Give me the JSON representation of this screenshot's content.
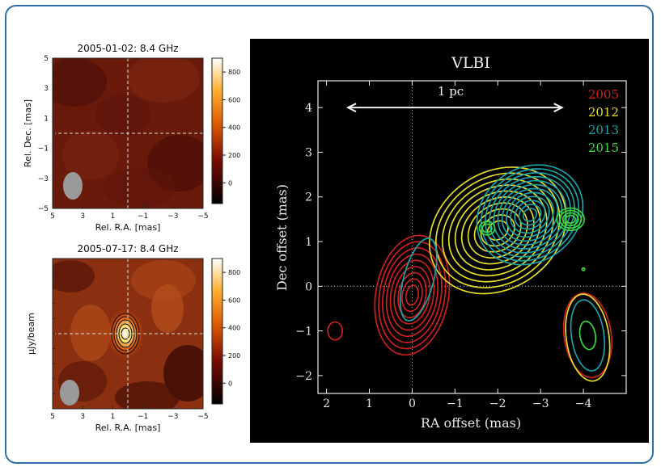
{
  "colors": {
    "frame_border": "#2e6fa7",
    "vlbi_background": "#000000",
    "y2005": "#cc1f1f",
    "y2012": "#e4dc2a",
    "y2013": "#1aa0a8",
    "y2015": "#38d83a",
    "beam": "#9a9a9a"
  },
  "chart_data": [
    {
      "type": "heatmap",
      "title": "2005-01-02:  8.4 GHz",
      "xlabel": "Rel. R.A. [mas]",
      "ylabel": "Rel. Dec. [mas]",
      "x_ticks": [
        "5",
        "3",
        "1",
        "−1",
        "−3",
        "−5"
      ],
      "y_ticks": [
        "5",
        "3",
        "1",
        "−1",
        "−3",
        "−5"
      ],
      "xlim": [
        5,
        -5
      ],
      "ylim": [
        -5,
        5
      ],
      "colorbar_ticks": [
        "800",
        "600",
        "400",
        "200",
        "0"
      ],
      "colorbar_range": [
        -150,
        900
      ],
      "colormap": "afmhot",
      "crosshair": [
        0,
        0
      ],
      "beam_icon": "restoring-beam-ellipse",
      "source_detected": false
    },
    {
      "type": "heatmap",
      "title": "2005-07-17:  8.4 GHz",
      "xlabel": "Rel. R.A. [mas]",
      "ylabel": "μJy/beam",
      "x_ticks": [
        "5",
        "3",
        "1",
        "−1",
        "−3",
        "−5"
      ],
      "xlim": [
        5,
        -5
      ],
      "ylim": [
        -5,
        5
      ],
      "colorbar_ticks": [
        "800",
        "600",
        "400",
        "200",
        "0"
      ],
      "colorbar_range": [
        -150,
        900
      ],
      "colormap": "afmhot",
      "crosshair": [
        0,
        0
      ],
      "beam_icon": "restoring-beam-ellipse",
      "source_detected": true,
      "peak_position": [
        0,
        0
      ]
    },
    {
      "type": "contour",
      "title": "VLBI",
      "xlabel": "RA offset (mas)",
      "ylabel": "Dec offset (mas)",
      "xlim": [
        2.2,
        -5
      ],
      "ylim": [
        -2.4,
        4.6
      ],
      "x_ticks": [
        2,
        1,
        0,
        -1,
        -2,
        -3,
        -4
      ],
      "y_ticks": [
        4,
        3,
        2,
        1,
        0,
        -1,
        -2
      ],
      "x_tick_labels": [
        "2",
        "1",
        "0",
        "−1",
        "−2",
        "−3",
        "−4"
      ],
      "y_tick_labels": [
        "4",
        "3",
        "2",
        "1",
        "0",
        "−1",
        "−2"
      ],
      "zero_lines": true,
      "legend_position": "top-right",
      "scale_bar": {
        "label": "1 pc",
        "from_x": 1.5,
        "to_x": -3.5,
        "y": 4.0
      },
      "series": [
        {
          "name": "2005",
          "color": "#cc1f1f",
          "components": [
            {
              "cx": 0.0,
              "cy": -0.2,
              "rx": 0.85,
              "ry": 1.35,
              "angle": -10,
              "levels": 9
            },
            {
              "cx": 1.8,
              "cy": -1.0,
              "rx": 0.17,
              "ry": 0.2,
              "angle": 0,
              "levels": 1
            },
            {
              "cx": -4.1,
              "cy": -1.1,
              "rx": 0.55,
              "ry": 0.95,
              "angle": 8,
              "levels": 1
            }
          ]
        },
        {
          "name": "2012",
          "color": "#e4dc2a",
          "components": [
            {
              "cx": -2.0,
              "cy": 1.25,
              "rx": 1.7,
              "ry": 1.3,
              "angle": 35,
              "levels": 10
            },
            {
              "cx": -4.1,
              "cy": -1.15,
              "rx": 0.5,
              "ry": 0.98,
              "angle": 8,
              "levels": 1
            }
          ]
        },
        {
          "name": "2013",
          "color": "#1aa0a8",
          "components": [
            {
              "cx": -2.75,
              "cy": 1.6,
              "rx": 1.3,
              "ry": 1.05,
              "angle": 35,
              "levels": 12
            },
            {
              "cx": -0.15,
              "cy": 0.15,
              "rx": 0.35,
              "ry": 0.95,
              "angle": -15,
              "levels": 1
            },
            {
              "cx": -4.1,
              "cy": -1.1,
              "rx": 0.38,
              "ry": 0.8,
              "angle": 8,
              "levels": 1
            }
          ]
        },
        {
          "name": "2015",
          "color": "#38d83a",
          "components": [
            {
              "cx": -3.7,
              "cy": 1.5,
              "rx": 0.32,
              "ry": 0.25,
              "angle": 0,
              "levels": 4
            },
            {
              "cx": -1.75,
              "cy": 1.3,
              "rx": 0.18,
              "ry": 0.15,
              "angle": 0,
              "levels": 2
            },
            {
              "cx": -4.1,
              "cy": -1.1,
              "rx": 0.18,
              "ry": 0.32,
              "angle": 10,
              "levels": 1
            },
            {
              "cx": -4.0,
              "cy": 0.38,
              "rx": 0.03,
              "ry": 0.03,
              "angle": 0,
              "levels": 1
            }
          ]
        }
      ]
    }
  ]
}
